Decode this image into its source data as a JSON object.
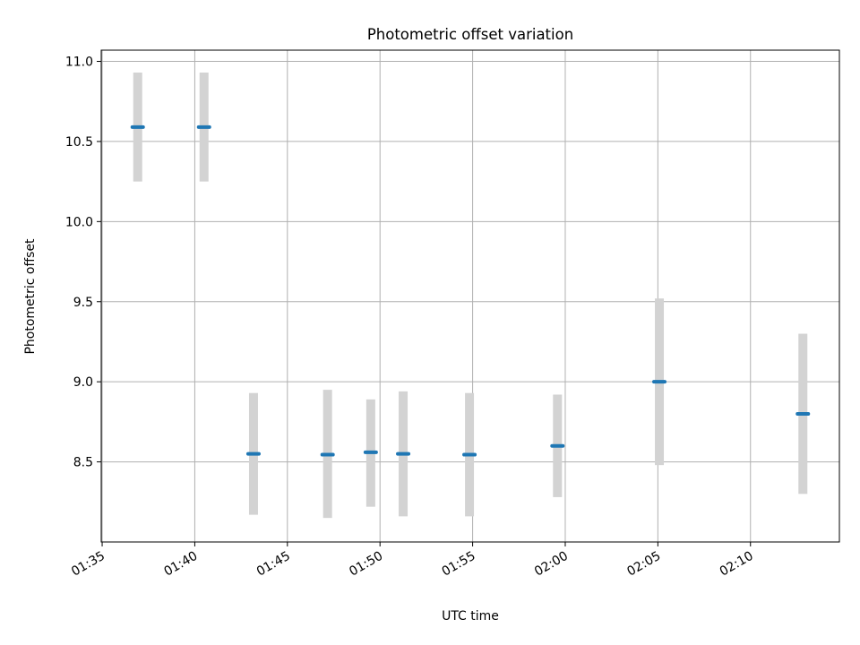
{
  "chart_data": {
    "type": "scatter",
    "title": "Photometric offset variation",
    "xlabel": "UTC time",
    "ylabel": "Photometric offset",
    "x_ticks": [
      "01:35",
      "01:40",
      "01:45",
      "01:50",
      "01:55",
      "02:00",
      "02:05",
      "02:10"
    ],
    "x_tick_minutes": [
      95,
      100,
      105,
      110,
      115,
      120,
      125,
      130
    ],
    "y_ticks": [
      "8.5",
      "9.0",
      "9.5",
      "10.0",
      "10.5",
      "11.0"
    ],
    "y_tick_values": [
      8.5,
      9.0,
      9.5,
      10.0,
      10.5,
      11.0
    ],
    "xlim_minutes": [
      94.95,
      134.8
    ],
    "ylim": [
      8.0,
      11.07
    ],
    "grid": true,
    "colors": {
      "point": "#1f77b4",
      "errorbar": "#d3d3d3",
      "grid": "#b0b0b0",
      "axes": "#000000"
    },
    "points": [
      {
        "time": "01:36:55",
        "minutes": 96.92,
        "y": 10.59,
        "y_low": 10.25,
        "y_high": 10.93
      },
      {
        "time": "01:40:30",
        "minutes": 100.5,
        "y": 10.59,
        "y_low": 10.25,
        "y_high": 10.93
      },
      {
        "time": "01:43:10",
        "minutes": 103.17,
        "y": 8.55,
        "y_low": 8.17,
        "y_high": 8.93
      },
      {
        "time": "01:47:10",
        "minutes": 107.17,
        "y": 8.545,
        "y_low": 8.15,
        "y_high": 8.95
      },
      {
        "time": "01:49:30",
        "minutes": 109.5,
        "y": 8.56,
        "y_low": 8.22,
        "y_high": 8.89
      },
      {
        "time": "01:51:15",
        "minutes": 111.25,
        "y": 8.55,
        "y_low": 8.16,
        "y_high": 8.94
      },
      {
        "time": "01:54:50",
        "minutes": 114.83,
        "y": 8.545,
        "y_low": 8.16,
        "y_high": 8.93
      },
      {
        "time": "01:59:35",
        "minutes": 119.58,
        "y": 8.6,
        "y_low": 8.28,
        "y_high": 8.92
      },
      {
        "time": "02:05:05",
        "minutes": 125.08,
        "y": 9.0,
        "y_low": 8.48,
        "y_high": 9.52
      },
      {
        "time": "02:12:50",
        "minutes": 132.83,
        "y": 8.8,
        "y_low": 8.3,
        "y_high": 9.3
      }
    ]
  }
}
